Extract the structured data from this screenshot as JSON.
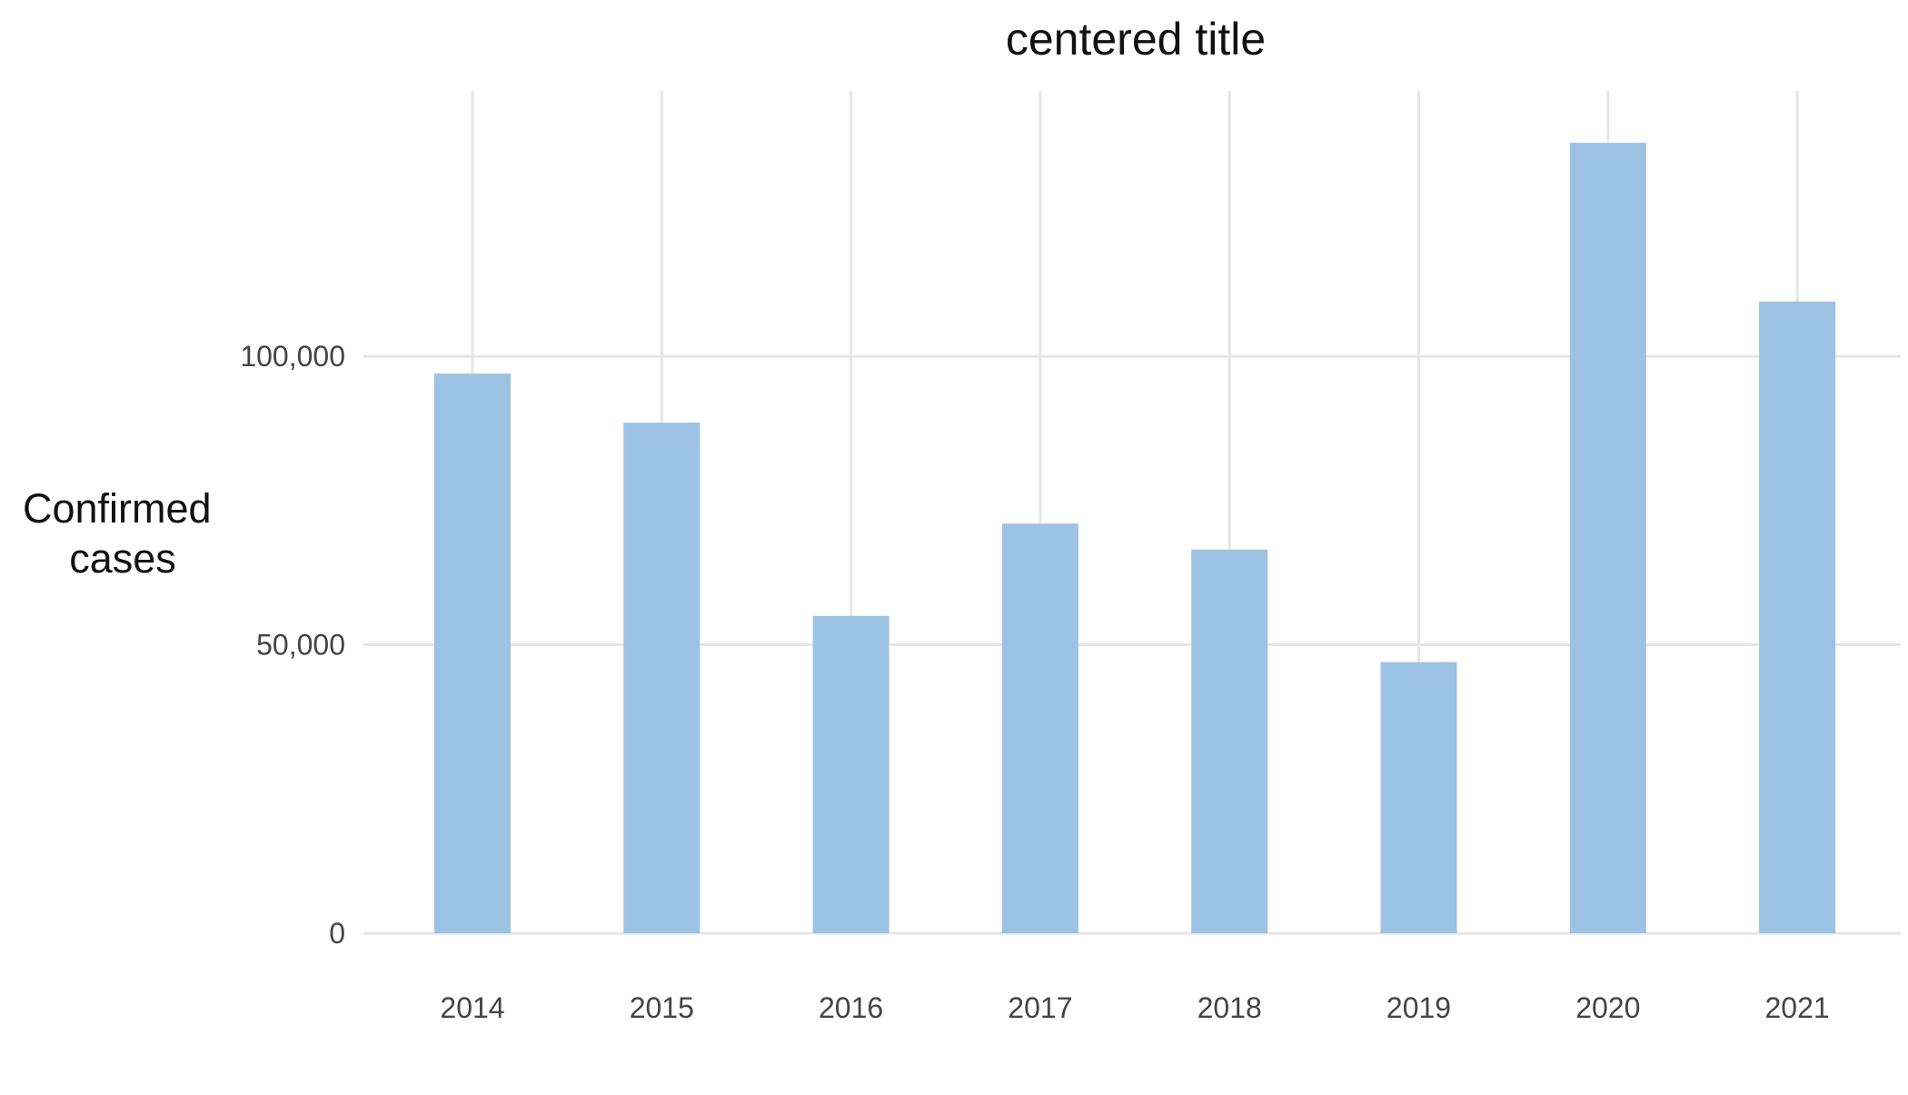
{
  "chart_data": {
    "type": "bar",
    "title": "centered title",
    "xlabel": "",
    "ylabel": "Confirmed cases",
    "ylabel_lines": [
      "Confirmed",
      "cases"
    ],
    "categories": [
      "2014",
      "2015",
      "2016",
      "2017",
      "2018",
      "2019",
      "2020",
      "2021"
    ],
    "values": [
      97000,
      88500,
      55000,
      71000,
      66500,
      47000,
      137000,
      109500
    ],
    "ylim": [
      0,
      146000
    ],
    "y_ticks": [
      {
        "value": 0,
        "label": "0"
      },
      {
        "value": 50000,
        "label": "50,000"
      },
      {
        "value": 100000,
        "label": "100,000"
      }
    ],
    "grid": true,
    "legend": "none",
    "colors": {
      "bar": "#9cc2e4",
      "grid": "#e6e6e6",
      "tick_text": "#444444",
      "title_text": "#111111"
    }
  }
}
